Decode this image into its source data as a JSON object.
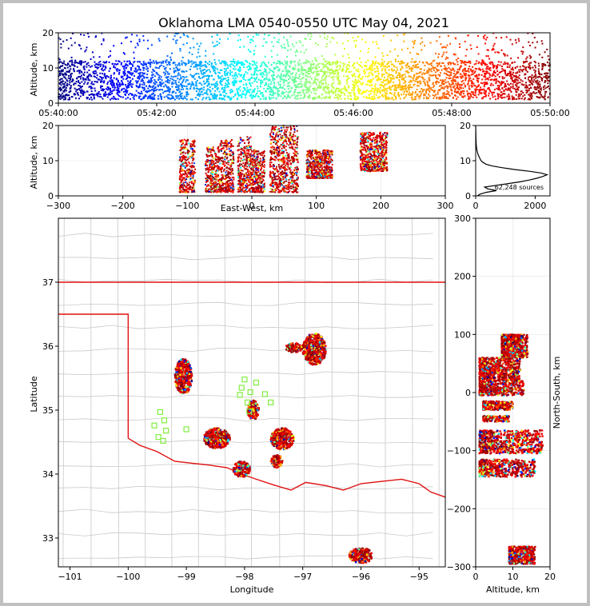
{
  "title": "Oklahoma LMA 0540-0550 UTC May 04, 2021",
  "colors": {
    "state_border": "#e01010",
    "county_lines": "#c8c8c8",
    "station_marker": "#80ee40",
    "jet_ramp": [
      "#000080",
      "#0000ff",
      "#00ffff",
      "#80ff80",
      "#ffff00",
      "#ff8000",
      "#ff0000",
      "#800000"
    ]
  },
  "chart_data": [
    {
      "id": "time-height",
      "type": "scatter",
      "title": "",
      "xlabel": "",
      "ylabel": "Altitude, km",
      "xlim": [
        "05:40:00",
        "05:50:00"
      ],
      "ylim": [
        0,
        20
      ],
      "x_ticks": [
        "05:40:00",
        "05:42:00",
        "05:44:00",
        "05:46:00",
        "05:48:00",
        "05:50:00"
      ],
      "y_ticks": [
        "0",
        "10",
        "20"
      ],
      "color_by": "time",
      "main_band_km": [
        1,
        12
      ]
    },
    {
      "id": "ew-height",
      "type": "scatter",
      "xlabel": "East-West, km",
      "ylabel": "Altitude, km",
      "xlim": [
        -300,
        300
      ],
      "ylim": [
        0,
        20
      ],
      "x_ticks": [
        "−300",
        "−200",
        "−100",
        "0",
        "100",
        "200",
        "300"
      ],
      "y_ticks": [
        "0",
        "10",
        "20"
      ],
      "clusters": [
        {
          "x": [
            -112,
            -88
          ],
          "z": [
            1,
            16
          ]
        },
        {
          "x": [
            -72,
            -50
          ],
          "z": [
            1,
            14
          ]
        },
        {
          "x": [
            -50,
            -28
          ],
          "z": [
            1,
            16
          ]
        },
        {
          "x": [
            -22,
            0
          ],
          "z": [
            1,
            17
          ]
        },
        {
          "x": [
            0,
            20
          ],
          "z": [
            1,
            13
          ]
        },
        {
          "x": [
            28,
            72
          ],
          "z": [
            1,
            20
          ]
        },
        {
          "x": [
            85,
            125
          ],
          "z": [
            5,
            13
          ]
        },
        {
          "x": [
            168,
            210
          ],
          "z": [
            7,
            18
          ]
        }
      ]
    },
    {
      "id": "altitude-histogram",
      "type": "line",
      "xlim": [
        0,
        2500
      ],
      "ylim": [
        0,
        20
      ],
      "x_ticks": [
        "0",
        "2000"
      ],
      "y_ticks": [
        "0",
        "10",
        "20"
      ],
      "source_count_label": "62,248 sources",
      "profile": {
        "altitude_km": [
          0,
          0.5,
          1.0,
          1.5,
          2.0,
          2.5,
          3.0,
          3.5,
          4.0,
          4.5,
          5.0,
          5.5,
          6.0,
          6.5,
          7.0,
          7.5,
          8.0,
          8.5,
          9.0,
          9.5,
          10,
          11,
          12,
          13,
          14,
          15,
          16,
          18,
          20
        ],
        "count": [
          50,
          150,
          350,
          700,
          400,
          300,
          700,
          1100,
          1500,
          1800,
          2050,
          2250,
          2400,
          2200,
          1800,
          1300,
          900,
          550,
          350,
          250,
          180,
          120,
          70,
          40,
          25,
          15,
          10,
          5,
          0
        ]
      }
    },
    {
      "id": "plan-view",
      "type": "scatter",
      "xlabel": "Longitude",
      "ylabel": "Latitude",
      "xlim": [
        -101.2,
        -94.55
      ],
      "ylim": [
        32.55,
        38.0
      ],
      "x_ticks": [
        "−101",
        "−100",
        "−99",
        "−98",
        "−97",
        "−96",
        "−95"
      ],
      "y_ticks": [
        "33",
        "34",
        "35",
        "36",
        "37"
      ],
      "clusters": [
        {
          "lon": [
            -99.2,
            -98.9
          ],
          "lat": [
            35.25,
            35.8
          ]
        },
        {
          "lon": [
            -98.7,
            -98.25
          ],
          "lat": [
            34.4,
            34.72
          ]
        },
        {
          "lon": [
            -98.2,
            -97.9
          ],
          "lat": [
            33.95,
            34.2
          ]
        },
        {
          "lon": [
            -97.95,
            -97.75
          ],
          "lat": [
            34.85,
            35.15
          ]
        },
        {
          "lon": [
            -97.55,
            -97.15
          ],
          "lat": [
            34.38,
            34.72
          ]
        },
        {
          "lon": [
            -97.55,
            -97.35
          ],
          "lat": [
            34.1,
            34.3
          ]
        },
        {
          "lon": [
            -97.3,
            -97.0
          ],
          "lat": [
            35.9,
            36.05
          ]
        },
        {
          "lon": [
            -97.0,
            -96.6
          ],
          "lat": [
            35.7,
            36.2
          ]
        },
        {
          "lon": [
            -96.2,
            -95.8
          ],
          "lat": [
            32.6,
            32.85
          ]
        }
      ],
      "stations": [
        {
          "lon": -98.0,
          "lat": 35.48
        },
        {
          "lon": -97.8,
          "lat": 35.43
        },
        {
          "lon": -98.05,
          "lat": 35.35
        },
        {
          "lon": -97.9,
          "lat": 35.28
        },
        {
          "lon": -98.08,
          "lat": 35.24
        },
        {
          "lon": -97.65,
          "lat": 35.25
        },
        {
          "lon": -97.55,
          "lat": 35.12
        },
        {
          "lon": -97.95,
          "lat": 35.12
        },
        {
          "lon": -97.92,
          "lat": 34.98
        },
        {
          "lon": -99.45,
          "lat": 34.97
        },
        {
          "lon": -99.38,
          "lat": 34.84
        },
        {
          "lon": -99.55,
          "lat": 34.76
        },
        {
          "lon": -99.35,
          "lat": 34.68
        },
        {
          "lon": -99.0,
          "lat": 34.7
        },
        {
          "lon": -99.48,
          "lat": 34.58
        },
        {
          "lon": -99.4,
          "lat": 34.52
        }
      ]
    },
    {
      "id": "ns-height",
      "type": "scatter",
      "xlabel": "Altitude, km",
      "ylabel": "North-South, km",
      "xlim": [
        0,
        20
      ],
      "ylim": [
        -300,
        300
      ],
      "x_ticks": [
        "0",
        "10",
        "20"
      ],
      "y_ticks": [
        "−300",
        "−200",
        "−100",
        "0",
        "100",
        "200",
        "300"
      ],
      "clusters": [
        {
          "ns": [
            60,
            100
          ],
          "z": [
            7,
            14
          ]
        },
        {
          "ns": [
            20,
            60
          ],
          "z": [
            1,
            12
          ]
        },
        {
          "ns": [
            -5,
            20
          ],
          "z": [
            1,
            13
          ]
        },
        {
          "ns": [
            -30,
            -15
          ],
          "z": [
            2,
            10
          ]
        },
        {
          "ns": [
            -50,
            -40
          ],
          "z": [
            2,
            9
          ]
        },
        {
          "ns": [
            -105,
            -65
          ],
          "z": [
            1,
            18
          ]
        },
        {
          "ns": [
            -145,
            -115
          ],
          "z": [
            1,
            16
          ]
        },
        {
          "ns": [
            -295,
            -265
          ],
          "z": [
            9,
            16
          ]
        }
      ]
    }
  ]
}
